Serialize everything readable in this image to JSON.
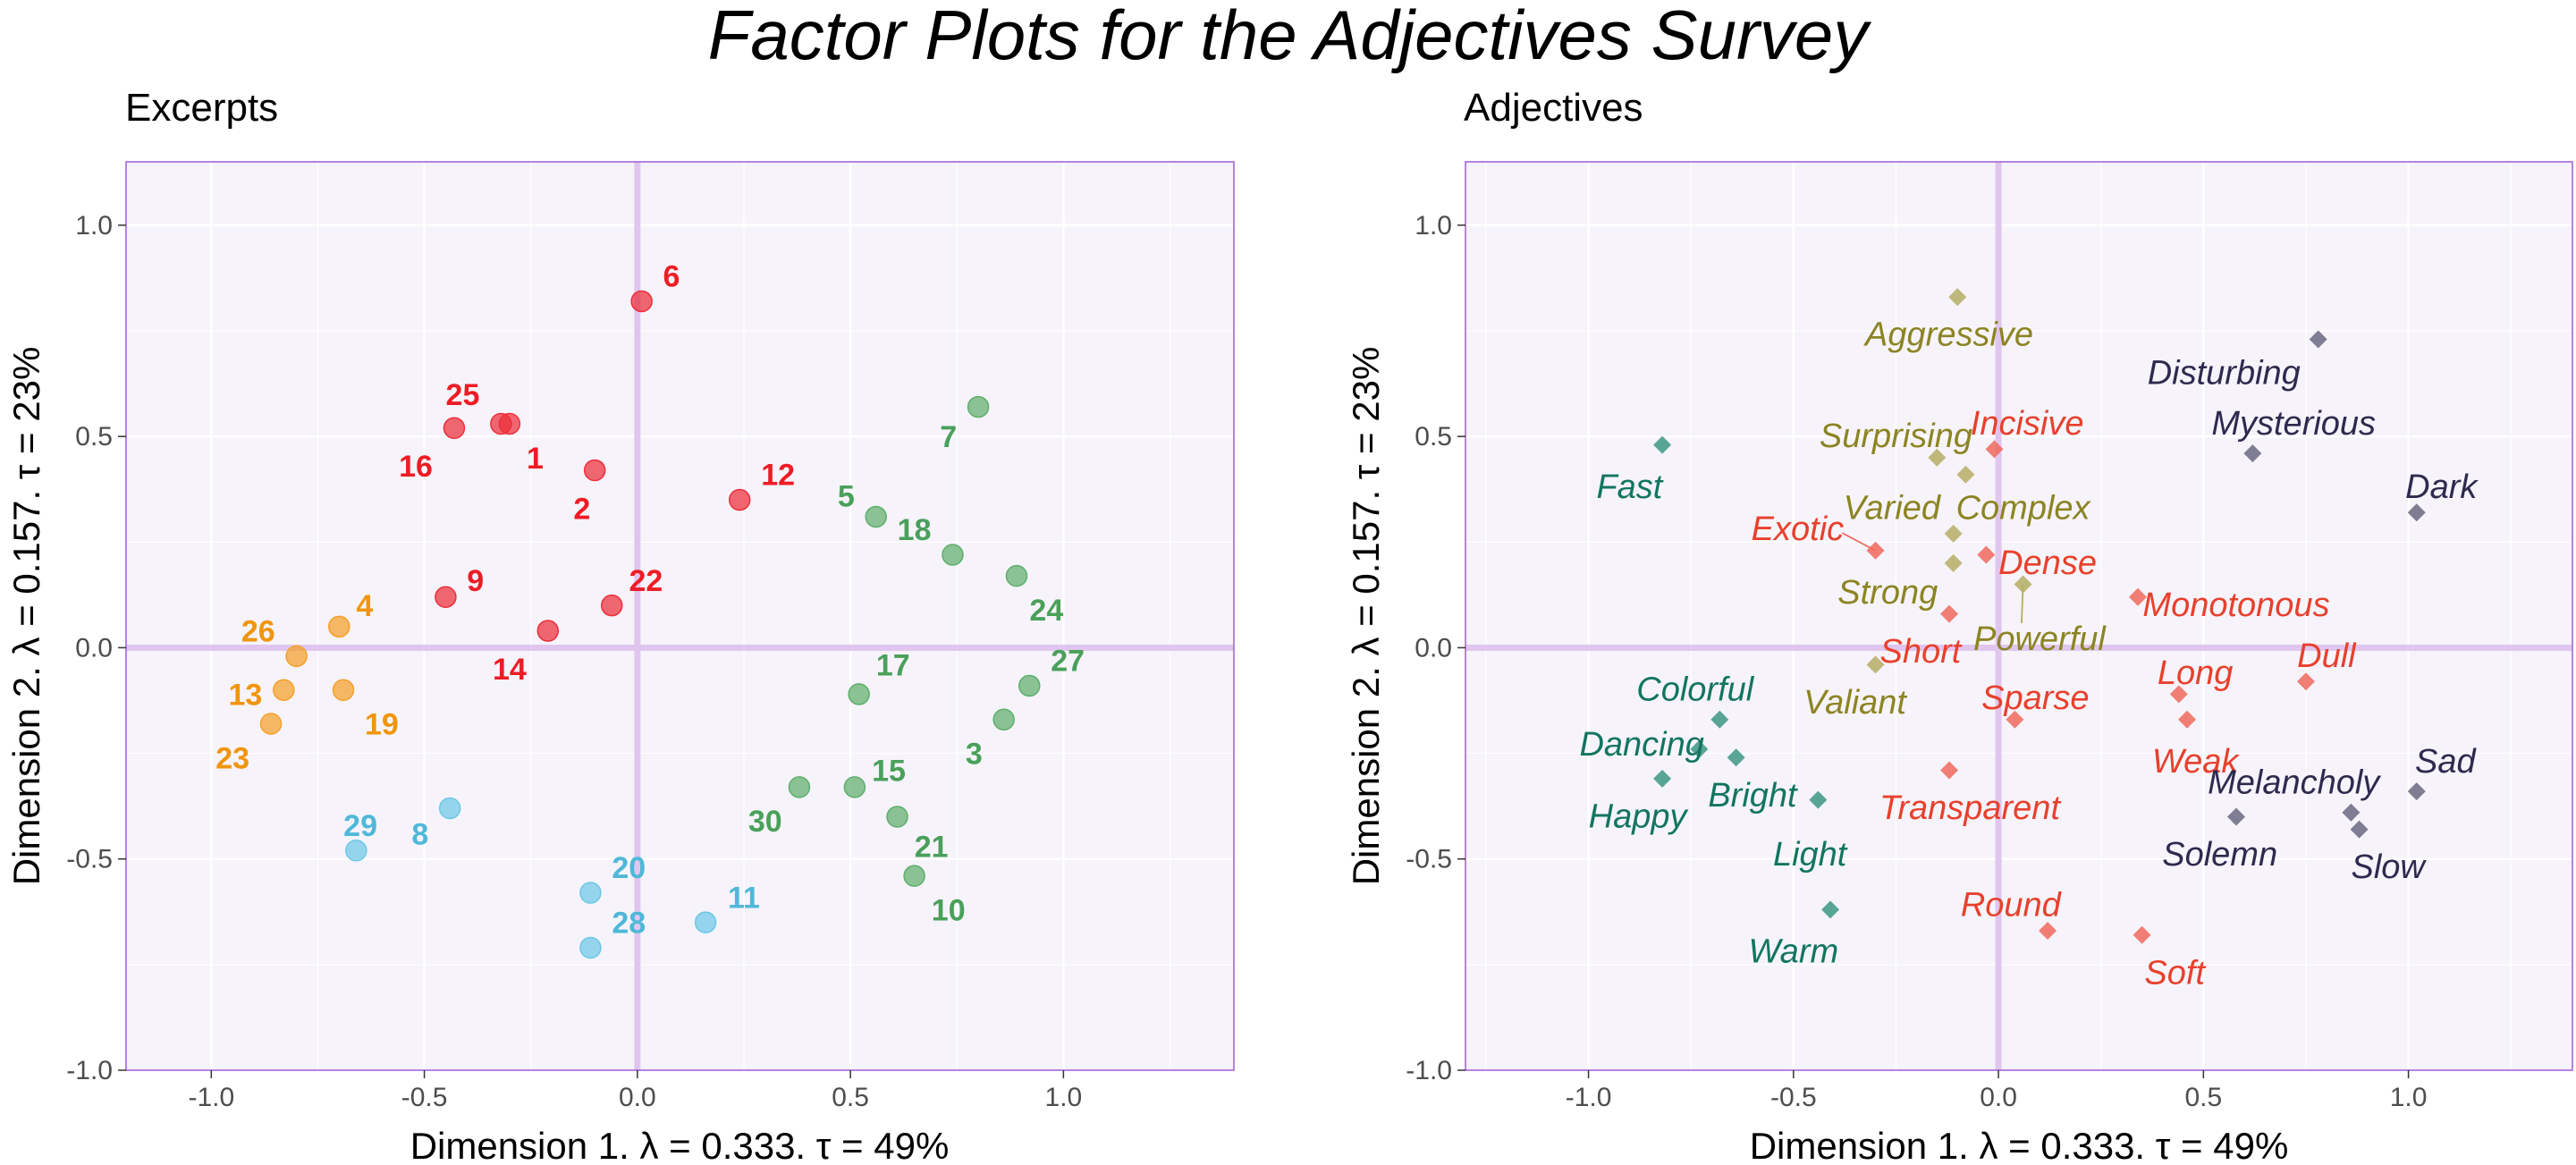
{
  "title": "Factor Plots for the Adjectives Survey",
  "colors": {
    "panel_bg": "#f6f3fb",
    "panel_border": "#a05bd6",
    "grid": "#ffffff",
    "zero_line": "#e0c6ef",
    "red": "#ee1c25",
    "orange": "#f0950c",
    "green": "#4aa05a",
    "blue": "#4fb8d8",
    "teal": "#12755f",
    "olive": "#8c8422",
    "adj_red": "#e8402c",
    "navy": "#2e2a4e"
  },
  "chart_data": [
    {
      "type": "scatter",
      "title": "Excerpts",
      "xlabel": "Dimension 1.  λ = 0.333.  τ = 49%",
      "ylabel": "Dimension 2.  λ = 0.157.  τ = 23%",
      "xlim": [
        -1.2,
        1.4
      ],
      "ylim": [
        -1.0,
        1.15
      ],
      "x_ticks": [
        "-1.0",
        "-0.5",
        "0.0",
        "0.5",
        "1.0"
      ],
      "y_ticks": [
        "-1.0",
        "-0.5",
        "0.0",
        "0.5",
        "1.0"
      ],
      "marker": "circle",
      "grid": true,
      "points": [
        {
          "label": "6",
          "x": 0.01,
          "y": 0.82,
          "group": "red",
          "lx": 0.08,
          "ly": 0.88,
          "anchor": "middle"
        },
        {
          "label": "25",
          "x": -0.32,
          "y": 0.53,
          "group": "red",
          "lx": -0.41,
          "ly": 0.6,
          "anchor": "middle"
        },
        {
          "label": "1",
          "x": -0.3,
          "y": 0.53,
          "group": "red",
          "lx": -0.24,
          "ly": 0.45,
          "anchor": "middle"
        },
        {
          "label": "16",
          "x": -0.43,
          "y": 0.52,
          "group": "red",
          "lx": -0.52,
          "ly": 0.43,
          "anchor": "middle"
        },
        {
          "label": "2",
          "x": -0.1,
          "y": 0.42,
          "group": "red",
          "lx": -0.13,
          "ly": 0.33,
          "anchor": "middle"
        },
        {
          "label": "12",
          "x": 0.24,
          "y": 0.35,
          "group": "red",
          "lx": 0.33,
          "ly": 0.41,
          "anchor": "middle"
        },
        {
          "label": "9",
          "x": -0.45,
          "y": 0.12,
          "group": "red",
          "lx": -0.38,
          "ly": 0.16,
          "anchor": "middle"
        },
        {
          "label": "22",
          "x": -0.06,
          "y": 0.1,
          "group": "red",
          "lx": 0.02,
          "ly": 0.16,
          "anchor": "middle"
        },
        {
          "label": "14",
          "x": -0.21,
          "y": 0.04,
          "group": "red",
          "lx": -0.3,
          "ly": -0.05,
          "anchor": "middle"
        },
        {
          "label": "4",
          "x": -0.7,
          "y": 0.05,
          "group": "orange",
          "lx": -0.64,
          "ly": 0.1,
          "anchor": "middle"
        },
        {
          "label": "26",
          "x": -0.8,
          "y": -0.02,
          "group": "orange",
          "lx": -0.89,
          "ly": 0.04,
          "anchor": "middle"
        },
        {
          "label": "13",
          "x": -0.83,
          "y": -0.1,
          "group": "orange",
          "lx": -0.92,
          "ly": -0.11,
          "anchor": "middle"
        },
        {
          "label": "19",
          "x": -0.69,
          "y": -0.1,
          "group": "orange",
          "lx": -0.6,
          "ly": -0.18,
          "anchor": "middle"
        },
        {
          "label": "23",
          "x": -0.86,
          "y": -0.18,
          "group": "orange",
          "lx": -0.95,
          "ly": -0.26,
          "anchor": "middle"
        },
        {
          "label": "29",
          "x": -0.66,
          "y": -0.48,
          "group": "blue",
          "lx": -0.65,
          "ly": -0.42,
          "anchor": "middle"
        },
        {
          "label": "8",
          "x": -0.44,
          "y": -0.38,
          "group": "blue",
          "lx": -0.51,
          "ly": -0.44,
          "anchor": "middle"
        },
        {
          "label": "20",
          "x": -0.11,
          "y": -0.58,
          "group": "blue",
          "lx": -0.02,
          "ly": -0.52,
          "anchor": "middle"
        },
        {
          "label": "28",
          "x": -0.11,
          "y": -0.71,
          "group": "blue",
          "lx": -0.02,
          "ly": -0.65,
          "anchor": "middle"
        },
        {
          "label": "11",
          "x": 0.16,
          "y": -0.65,
          "group": "blue",
          "lx": 0.25,
          "ly": -0.59,
          "anchor": "middle"
        },
        {
          "label": "7",
          "x": 0.8,
          "y": 0.57,
          "group": "green",
          "lx": 0.73,
          "ly": 0.5,
          "anchor": "middle"
        },
        {
          "label": "5",
          "x": 0.56,
          "y": 0.31,
          "group": "green",
          "lx": 0.49,
          "ly": 0.36,
          "anchor": "middle"
        },
        {
          "label": "18",
          "x": 0.74,
          "y": 0.22,
          "group": "green",
          "lx": 0.65,
          "ly": 0.28,
          "anchor": "middle"
        },
        {
          "label": "24",
          "x": 0.89,
          "y": 0.17,
          "group": "green",
          "lx": 0.96,
          "ly": 0.09,
          "anchor": "middle"
        },
        {
          "label": "27",
          "x": 0.92,
          "y": -0.09,
          "group": "green",
          "lx": 1.01,
          "ly": -0.03,
          "anchor": "middle"
        },
        {
          "label": "17",
          "x": 0.52,
          "y": -0.11,
          "group": "green",
          "lx": 0.6,
          "ly": -0.04,
          "anchor": "middle"
        },
        {
          "label": "3",
          "x": 0.86,
          "y": -0.17,
          "group": "green",
          "lx": 0.79,
          "ly": -0.25,
          "anchor": "middle"
        },
        {
          "label": "15",
          "x": 0.51,
          "y": -0.33,
          "group": "green",
          "lx": 0.59,
          "ly": -0.29,
          "anchor": "middle"
        },
        {
          "label": "30",
          "x": 0.38,
          "y": -0.33,
          "group": "green",
          "lx": 0.3,
          "ly": -0.41,
          "anchor": "middle"
        },
        {
          "label": "21",
          "x": 0.61,
          "y": -0.4,
          "group": "green",
          "lx": 0.69,
          "ly": -0.47,
          "anchor": "middle"
        },
        {
          "label": "10",
          "x": 0.65,
          "y": -0.54,
          "group": "green",
          "lx": 0.73,
          "ly": -0.62,
          "anchor": "middle"
        }
      ]
    },
    {
      "type": "scatter",
      "title": "Adjectives",
      "xlabel": "Dimension 1.  λ = 0.333.  τ = 49%",
      "ylabel": "Dimension 2.  λ = 0.157.  τ = 23%",
      "xlim": [
        -1.3,
        1.4
      ],
      "ylim": [
        -1.0,
        1.15
      ],
      "x_ticks": [
        "-1.0",
        "-0.5",
        "0.0",
        "0.5",
        "1.0"
      ],
      "y_ticks": [
        "-1.0",
        "-0.5",
        "0.0",
        "0.5",
        "1.0"
      ],
      "marker": "diamond",
      "grid": true,
      "points": [
        {
          "label": "Fast",
          "x": -0.82,
          "y": 0.48,
          "group": "teal",
          "lx": -0.9,
          "ly": 0.38,
          "anchor": "middle"
        },
        {
          "label": "Colorful",
          "x": -0.68,
          "y": -0.17,
          "group": "teal",
          "lx": -0.74,
          "ly": -0.1,
          "anchor": "middle"
        },
        {
          "label": "Dancing",
          "x": -0.73,
          "y": -0.24,
          "group": "teal",
          "lx": -0.87,
          "ly": -0.23,
          "anchor": "middle"
        },
        {
          "label": "Happy",
          "x": -0.82,
          "y": -0.31,
          "group": "teal",
          "lx": -0.88,
          "ly": -0.4,
          "anchor": "middle"
        },
        {
          "label": "Bright",
          "x": -0.64,
          "y": -0.26,
          "group": "teal",
          "lx": -0.6,
          "ly": -0.35,
          "anchor": "middle"
        },
        {
          "label": "Light",
          "x": -0.44,
          "y": -0.36,
          "group": "teal",
          "lx": -0.46,
          "ly": -0.49,
          "anchor": "middle"
        },
        {
          "label": "Warm",
          "x": -0.41,
          "y": -0.62,
          "group": "teal",
          "lx": -0.5,
          "ly": -0.72,
          "anchor": "middle"
        },
        {
          "label": "Aggressive",
          "x": -0.1,
          "y": 0.83,
          "group": "olive",
          "lx": -0.12,
          "ly": 0.74,
          "anchor": "middle"
        },
        {
          "label": "Surprising",
          "x": -0.15,
          "y": 0.45,
          "group": "olive",
          "lx": -0.25,
          "ly": 0.5,
          "anchor": "middle"
        },
        {
          "label": "Complex",
          "x": -0.08,
          "y": 0.41,
          "group": "olive",
          "lx": 0.06,
          "ly": 0.33,
          "anchor": "middle"
        },
        {
          "label": "Varied",
          "x": -0.11,
          "y": 0.27,
          "group": "olive",
          "lx": -0.26,
          "ly": 0.33,
          "anchor": "middle"
        },
        {
          "label": "Strong",
          "x": -0.11,
          "y": 0.2,
          "group": "olive",
          "lx": -0.27,
          "ly": 0.13,
          "anchor": "middle"
        },
        {
          "label": "Powerful",
          "x": 0.06,
          "y": 0.15,
          "group": "olive",
          "lx": 0.1,
          "ly": 0.02,
          "anchor": "middle",
          "leader": true
        },
        {
          "label": "Valiant",
          "x": -0.3,
          "y": -0.04,
          "group": "olive",
          "lx": -0.35,
          "ly": -0.13,
          "anchor": "middle"
        },
        {
          "label": "Incisive",
          "x": -0.01,
          "y": 0.47,
          "group": "adj_red",
          "lx": 0.07,
          "ly": 0.53,
          "anchor": "middle"
        },
        {
          "label": "Exotic",
          "x": -0.3,
          "y": 0.23,
          "group": "adj_red",
          "lx": -0.49,
          "ly": 0.28,
          "anchor": "middle",
          "leader": true
        },
        {
          "label": "Dense",
          "x": -0.03,
          "y": 0.22,
          "group": "adj_red",
          "lx": 0.12,
          "ly": 0.2,
          "anchor": "middle"
        },
        {
          "label": "Short",
          "x": -0.12,
          "y": 0.08,
          "group": "adj_red",
          "lx": -0.19,
          "ly": -0.01,
          "anchor": "middle"
        },
        {
          "label": "Monotonous",
          "x": 0.34,
          "y": 0.12,
          "group": "adj_red",
          "lx": 0.58,
          "ly": 0.1,
          "anchor": "middle"
        },
        {
          "label": "Long",
          "x": 0.44,
          "y": -0.11,
          "group": "adj_red",
          "lx": 0.48,
          "ly": -0.06,
          "anchor": "middle"
        },
        {
          "label": "Dull",
          "x": 0.75,
          "y": -0.08,
          "group": "adj_red",
          "lx": 0.8,
          "ly": -0.02,
          "anchor": "middle"
        },
        {
          "label": "Sparse",
          "x": 0.04,
          "y": -0.17,
          "group": "adj_red",
          "lx": 0.09,
          "ly": -0.12,
          "anchor": "middle"
        },
        {
          "label": "Weak",
          "x": 0.46,
          "y": -0.17,
          "group": "adj_red",
          "lx": 0.48,
          "ly": -0.27,
          "anchor": "middle"
        },
        {
          "label": "Transparent",
          "x": -0.12,
          "y": -0.29,
          "group": "adj_red",
          "lx": -0.07,
          "ly": -0.38,
          "anchor": "middle"
        },
        {
          "label": "Round",
          "x": 0.12,
          "y": -0.67,
          "group": "adj_red",
          "lx": 0.03,
          "ly": -0.61,
          "anchor": "middle"
        },
        {
          "label": "Soft",
          "x": 0.35,
          "y": -0.68,
          "group": "adj_red",
          "lx": 0.43,
          "ly": -0.77,
          "anchor": "middle"
        },
        {
          "label": "Disturbing",
          "x": 0.78,
          "y": 0.73,
          "group": "navy",
          "lx": 0.55,
          "ly": 0.65,
          "anchor": "middle"
        },
        {
          "label": "Mysterious",
          "x": 0.62,
          "y": 0.46,
          "group": "navy",
          "lx": 0.72,
          "ly": 0.53,
          "anchor": "middle"
        },
        {
          "label": "Dark",
          "x": 1.02,
          "y": 0.32,
          "group": "navy",
          "lx": 1.08,
          "ly": 0.38,
          "anchor": "middle"
        },
        {
          "label": "Sad",
          "x": 1.02,
          "y": -0.34,
          "group": "navy",
          "lx": 1.09,
          "ly": -0.27,
          "anchor": "middle"
        },
        {
          "label": "Melancholy",
          "x": 0.86,
          "y": -0.39,
          "group": "navy",
          "lx": 0.72,
          "ly": -0.32,
          "anchor": "middle"
        },
        {
          "label": "Solemn",
          "x": 0.58,
          "y": -0.4,
          "group": "navy",
          "lx": 0.54,
          "ly": -0.49,
          "anchor": "middle"
        },
        {
          "label": "Slow",
          "x": 0.88,
          "y": -0.43,
          "group": "navy",
          "lx": 0.95,
          "ly": -0.52,
          "anchor": "middle"
        }
      ]
    }
  ]
}
